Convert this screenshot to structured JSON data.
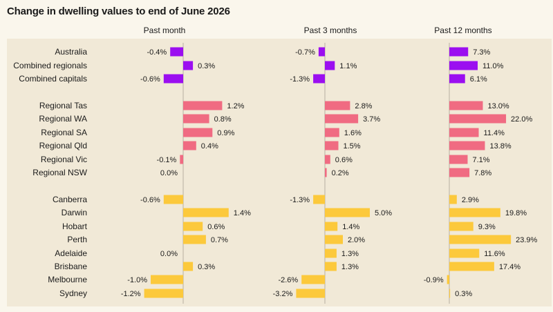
{
  "title": "Change in dwelling values to end of June 2026",
  "colors": {
    "purple": "#9b0ff0",
    "pink": "#f06b82",
    "yellow": "#fcc93c",
    "background": "#faf6ec",
    "panel": "#f1e9d7",
    "axis": "#b8b0a0"
  },
  "chart_data": {
    "type": "bar",
    "orientation": "horizontal",
    "title": "Change in dwelling values to end of June 2026",
    "categories": [
      "Australia",
      "Combined regionals",
      "Combined capitals",
      "Regional Tas",
      "Regional WA",
      "Regional SA",
      "Regional Qld",
      "Regional Vic",
      "Regional NSW",
      "Canberra",
      "Darwin",
      "Hobart",
      "Perth",
      "Adelaide",
      "Brisbane",
      "Melbourne",
      "Sydney"
    ],
    "groups": [
      {
        "color": "purple",
        "categories": [
          "Australia",
          "Combined regionals",
          "Combined capitals"
        ]
      },
      {
        "color": "pink",
        "categories": [
          "Regional Tas",
          "Regional WA",
          "Regional SA",
          "Regional Qld",
          "Regional Vic",
          "Regional NSW"
        ]
      },
      {
        "color": "yellow",
        "categories": [
          "Canberra",
          "Darwin",
          "Hobart",
          "Perth",
          "Adelaide",
          "Brisbane",
          "Melbourne",
          "Sydney"
        ]
      }
    ],
    "series": [
      {
        "name": "Past month",
        "values": [
          -0.4,
          0.3,
          -0.6,
          1.2,
          0.8,
          0.9,
          0.4,
          -0.1,
          0.0,
          -0.6,
          1.4,
          0.6,
          0.7,
          0.0,
          0.3,
          -1.0,
          -1.2
        ]
      },
      {
        "name": "Past 3 months",
        "values": [
          -0.7,
          1.1,
          -1.3,
          2.8,
          3.7,
          1.6,
          1.5,
          0.6,
          0.2,
          -1.3,
          5.0,
          1.4,
          2.0,
          1.3,
          1.3,
          -2.6,
          -3.2
        ]
      },
      {
        "name": "Past 12 months",
        "values": [
          7.3,
          11.0,
          6.1,
          13.0,
          22.0,
          11.4,
          13.8,
          7.1,
          7.8,
          2.9,
          19.8,
          9.3,
          23.9,
          11.6,
          17.4,
          -0.9,
          0.3
        ]
      }
    ],
    "value_suffix": "%",
    "legend": "none",
    "grid": false
  }
}
